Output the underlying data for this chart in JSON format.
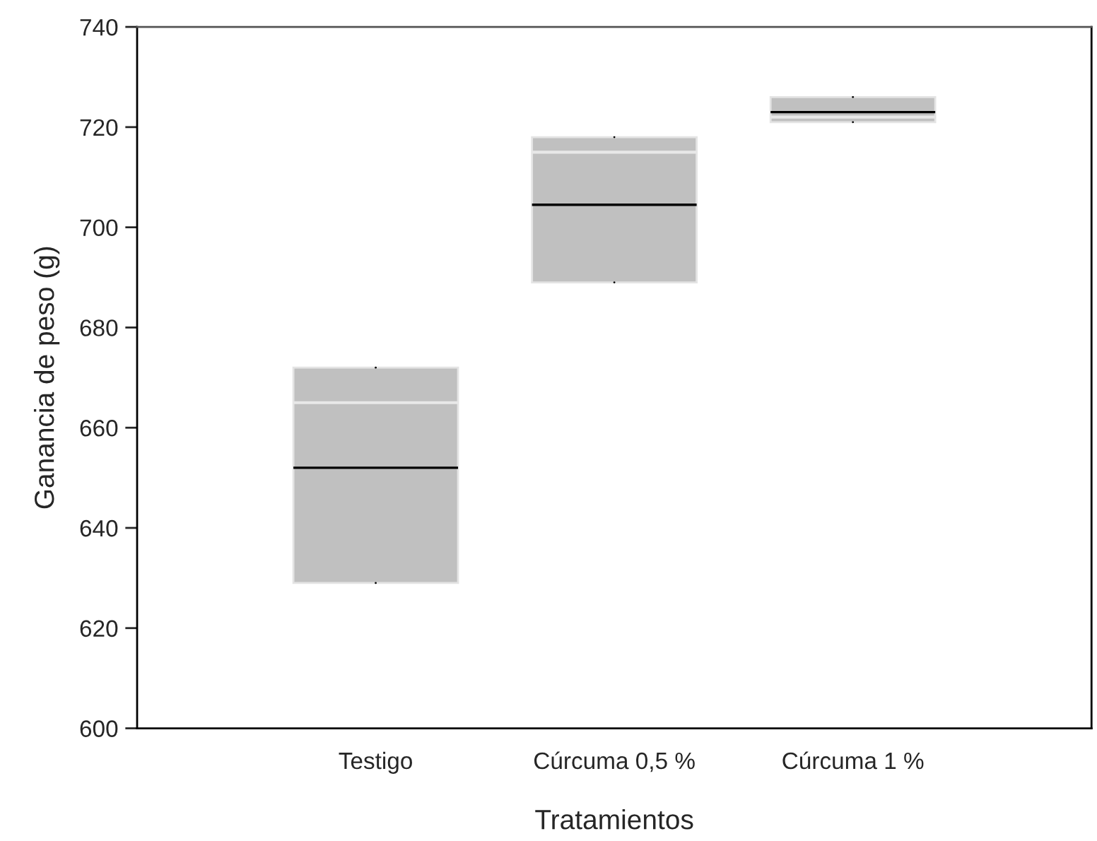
{
  "chart_data": {
    "type": "box",
    "xlabel": "Tratamientos",
    "ylabel": "Ganancia de peso (g)",
    "categories": [
      "Testigo",
      "Cúrcuma 0,5 %",
      "Cúrcuma 1 %"
    ],
    "series": [
      {
        "color": "#c0c0c0",
        "boxes": [
          {
            "low": 629,
            "q1": 629,
            "median": 652,
            "q3": 672,
            "high": 672,
            "mean": 665
          },
          {
            "low": 689,
            "q1": 689,
            "median": 704.5,
            "q3": 718,
            "high": 718,
            "mean": 715
          },
          {
            "low": 721,
            "q1": 721,
            "median": 723,
            "q3": 726,
            "high": 726,
            "mean": 722
          }
        ]
      }
    ],
    "ylim": [
      600,
      740
    ],
    "yticks": [
      600,
      620,
      640,
      660,
      680,
      700,
      720,
      740
    ],
    "grid": false,
    "legend": false
  }
}
